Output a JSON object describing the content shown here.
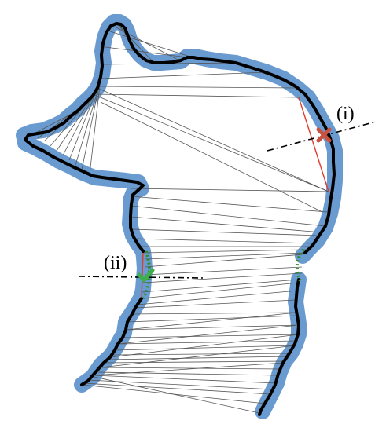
{
  "labels": {
    "label_i": "(i)",
    "label_ii": "(ii)"
  },
  "markers": {
    "cross_icon": "cross-icon",
    "check_icon": "check-icon"
  },
  "colors": {
    "band": "#6a9bd0",
    "outline": "#000000",
    "mesh": "#555555",
    "highlight": "#e03b2c",
    "cross": "#c8513f",
    "check": "#3cae4a",
    "gap": "#2f8f2f",
    "dashed_line": "#000000"
  }
}
